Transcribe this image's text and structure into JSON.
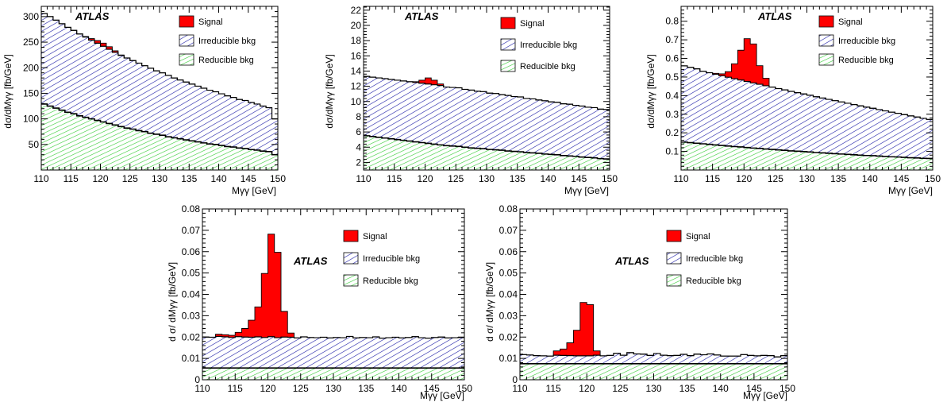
{
  "atlas_label": "ATLAS",
  "legend": {
    "signal": "Signal",
    "irreducible": "Irreducible bkg",
    "reducible": "Reducible bkg"
  },
  "colors": {
    "signal": "#ff0000",
    "irreducible": "#1a1aa6",
    "reducible": "#33cc33",
    "frame": "#000000"
  },
  "chart_data": [
    {
      "type": "area",
      "ylabel": "dσ/dMγγ [fb/GeV]",
      "xlabel": "Mγγ [GeV]",
      "xlim": [
        110,
        150
      ],
      "ylim": [
        0,
        320
      ],
      "x_ticks": [
        110,
        115,
        120,
        125,
        130,
        135,
        140,
        145,
        150
      ],
      "y_ticks": [
        50,
        100,
        150,
        200,
        250,
        300
      ],
      "bin_edges": [
        110,
        111,
        112,
        113,
        114,
        115,
        116,
        117,
        118,
        119,
        120,
        121,
        122,
        123,
        124,
        125,
        126,
        127,
        128,
        129,
        130,
        131,
        132,
        133,
        134,
        135,
        136,
        137,
        138,
        139,
        140,
        141,
        142,
        143,
        144,
        145,
        146,
        147,
        148,
        149,
        150
      ],
      "series": [
        {
          "name": "Signal",
          "values": [
            0,
            0,
            0,
            0,
            0,
            0,
            0,
            1,
            3,
            5,
            6,
            5,
            3,
            1,
            0,
            0,
            0,
            0,
            0,
            0,
            0,
            0,
            0,
            0,
            0,
            0,
            0,
            0,
            0,
            0,
            0,
            0,
            0,
            0,
            0,
            0,
            0,
            0,
            0,
            0
          ]
        },
        {
          "name": "Irreducible bkg",
          "values": [
            177,
            175,
            172,
            169,
            166,
            163,
            160,
            157,
            154,
            151,
            148,
            145,
            142,
            139,
            137,
            134,
            132,
            129,
            127,
            124,
            122,
            120,
            117,
            115,
            113,
            111,
            109,
            107,
            105,
            103,
            101,
            99,
            97,
            95,
            94,
            92,
            90,
            88,
            86,
            70
          ]
        },
        {
          "name": "Reducible bkg",
          "values": [
            129,
            125,
            121,
            117,
            113,
            110,
            106,
            103,
            100,
            97,
            94,
            91,
            88,
            85,
            82,
            80,
            77,
            75,
            72,
            70,
            68,
            65,
            63,
            61,
            59,
            57,
            55,
            53,
            51,
            50,
            48,
            46,
            45,
            43,
            42,
            40,
            39,
            37,
            36,
            30
          ]
        }
      ]
    },
    {
      "type": "area",
      "ylabel": "dσ/dMγγ [fb/GeV]",
      "xlabel": "Mγγ [GeV]",
      "xlim": [
        110,
        150
      ],
      "ylim": [
        1,
        22.5
      ],
      "x_ticks": [
        110,
        115,
        120,
        125,
        130,
        135,
        140,
        145,
        150
      ],
      "y_ticks": [
        2,
        4,
        6,
        8,
        10,
        12,
        14,
        16,
        18,
        20,
        22
      ],
      "bin_edges": [
        110,
        111,
        112,
        113,
        114,
        115,
        116,
        117,
        118,
        119,
        120,
        121,
        122,
        123,
        124,
        125,
        126,
        127,
        128,
        129,
        130,
        131,
        132,
        133,
        134,
        135,
        136,
        137,
        138,
        139,
        140,
        141,
        142,
        143,
        144,
        145,
        146,
        147,
        148,
        149,
        150
      ],
      "series": [
        {
          "name": "Signal",
          "values": [
            0,
            0,
            0,
            0,
            0,
            0,
            0,
            0,
            0.1,
            0.4,
            0.8,
            0.6,
            0.2,
            0,
            0,
            0,
            0,
            0,
            0,
            0,
            0,
            0,
            0,
            0,
            0,
            0,
            0,
            0,
            0,
            0,
            0,
            0,
            0,
            0,
            0,
            0,
            0,
            0,
            0,
            0
          ]
        },
        {
          "name": "Irreducible bkg",
          "values": [
            7.8,
            7.8,
            7.8,
            7.8,
            7.8,
            7.8,
            7.8,
            7.8,
            7.8,
            7.8,
            7.8,
            7.8,
            7.8,
            7.7,
            7.7,
            7.7,
            7.6,
            7.6,
            7.5,
            7.5,
            7.4,
            7.4,
            7.3,
            7.3,
            7.2,
            7.2,
            7.1,
            7.1,
            7.0,
            7.0,
            6.9,
            6.9,
            6.8,
            6.8,
            6.7,
            6.7,
            6.6,
            6.6,
            6.5,
            6.5
          ]
        },
        {
          "name": "Reducible bkg",
          "values": [
            5.5,
            5.4,
            5.3,
            5.2,
            5.1,
            5.0,
            4.9,
            4.8,
            4.7,
            4.6,
            4.5,
            4.4,
            4.3,
            4.2,
            4.15,
            4.1,
            4.0,
            3.9,
            3.85,
            3.8,
            3.7,
            3.65,
            3.6,
            3.5,
            3.45,
            3.4,
            3.3,
            3.25,
            3.2,
            3.1,
            3.05,
            3.0,
            2.9,
            2.85,
            2.8,
            2.7,
            2.65,
            2.6,
            2.5,
            2.45
          ]
        }
      ]
    },
    {
      "type": "area",
      "ylabel": "dσ/dMγγ [fb/GeV]",
      "xlabel": "Mγγ [GeV]",
      "xlim": [
        110,
        150
      ],
      "ylim": [
        0,
        0.88
      ],
      "x_ticks": [
        110,
        115,
        120,
        125,
        130,
        135,
        140,
        145,
        150
      ],
      "y_ticks": [
        0.1,
        0.2,
        0.3,
        0.4,
        0.5,
        0.6,
        0.7,
        0.8
      ],
      "bin_edges": [
        110,
        111,
        112,
        113,
        114,
        115,
        116,
        117,
        118,
        119,
        120,
        121,
        122,
        123,
        124,
        125,
        126,
        127,
        128,
        129,
        130,
        131,
        132,
        133,
        134,
        135,
        136,
        137,
        138,
        139,
        140,
        141,
        142,
        143,
        144,
        145,
        146,
        147,
        148,
        149,
        150
      ],
      "series": [
        {
          "name": "Signal",
          "values": [
            0,
            0,
            0,
            0,
            0,
            0.005,
            0.01,
            0.03,
            0.08,
            0.16,
            0.23,
            0.21,
            0.1,
            0.04,
            0,
            0,
            0,
            0,
            0,
            0,
            0,
            0,
            0,
            0,
            0,
            0,
            0,
            0,
            0,
            0,
            0,
            0,
            0,
            0,
            0,
            0,
            0,
            0,
            0,
            0
          ]
        },
        {
          "name": "Irreducible bkg",
          "values": [
            0.41,
            0.405,
            0.4,
            0.39,
            0.385,
            0.38,
            0.375,
            0.37,
            0.365,
            0.36,
            0.355,
            0.35,
            0.345,
            0.34,
            0.335,
            0.33,
            0.325,
            0.32,
            0.315,
            0.31,
            0.305,
            0.3,
            0.295,
            0.29,
            0.285,
            0.28,
            0.275,
            0.27,
            0.265,
            0.26,
            0.255,
            0.25,
            0.245,
            0.24,
            0.235,
            0.23,
            0.225,
            0.22,
            0.215,
            0.21
          ]
        },
        {
          "name": "Reducible bkg",
          "values": [
            0.15,
            0.147,
            0.144,
            0.141,
            0.138,
            0.135,
            0.132,
            0.129,
            0.126,
            0.124,
            0.121,
            0.118,
            0.116,
            0.113,
            0.111,
            0.108,
            0.106,
            0.103,
            0.101,
            0.099,
            0.097,
            0.094,
            0.092,
            0.09,
            0.088,
            0.086,
            0.084,
            0.082,
            0.08,
            0.078,
            0.077,
            0.075,
            0.073,
            0.071,
            0.07,
            0.068,
            0.066,
            0.065,
            0.063,
            0.062
          ]
        }
      ]
    },
    {
      "type": "area",
      "ylabel": "d σ/ dMγγ [fb/GeV]",
      "xlabel": "Mγγ [GeV]",
      "xlim": [
        110,
        150
      ],
      "ylim": [
        0,
        0.08
      ],
      "x_ticks": [
        110,
        115,
        120,
        125,
        130,
        135,
        140,
        145,
        150
      ],
      "y_ticks": [
        0,
        0.01,
        0.02,
        0.03,
        0.04,
        0.05,
        0.06,
        0.07,
        0.08
      ],
      "bin_edges": [
        110,
        111,
        112,
        113,
        114,
        115,
        116,
        117,
        118,
        119,
        120,
        121,
        122,
        123,
        124,
        125,
        126,
        127,
        128,
        129,
        130,
        131,
        132,
        133,
        134,
        135,
        136,
        137,
        138,
        139,
        140,
        141,
        142,
        143,
        144,
        145,
        146,
        147,
        148,
        149,
        150
      ],
      "series": [
        {
          "name": "Signal",
          "values": [
            0,
            0,
            0.001,
            0.001,
            0.001,
            0.002,
            0.004,
            0.008,
            0.014,
            0.03,
            0.048,
            0.04,
            0.012,
            0.002,
            0,
            0,
            0,
            0,
            0,
            0,
            0,
            0,
            0,
            0,
            0,
            0,
            0,
            0,
            0,
            0,
            0,
            0,
            0,
            0,
            0,
            0,
            0,
            0,
            0,
            0
          ]
        },
        {
          "name": "Irreducible bkg",
          "values": [
            0.0145,
            0.0144,
            0.0148,
            0.0146,
            0.0143,
            0.0147,
            0.0145,
            0.0144,
            0.0146,
            0.0143,
            0.0147,
            0.0142,
            0.0145,
            0.0144,
            0.0141,
            0.0146,
            0.0143,
            0.0142,
            0.0144,
            0.0141,
            0.0143,
            0.0142,
            0.0148,
            0.0141,
            0.0143,
            0.0142,
            0.0146,
            0.014,
            0.0142,
            0.0144,
            0.0141,
            0.0143,
            0.0147,
            0.0142,
            0.014,
            0.0143,
            0.0145,
            0.0141,
            0.0142,
            0.0143
          ]
        },
        {
          "name": "Reducible bkg",
          "values": [
            0.0055,
            0.0055,
            0.0055,
            0.0055,
            0.0055,
            0.0055,
            0.0055,
            0.0055,
            0.0055,
            0.0055,
            0.0055,
            0.0055,
            0.0055,
            0.0055,
            0.0055,
            0.0055,
            0.0055,
            0.0055,
            0.0055,
            0.0055,
            0.0055,
            0.0055,
            0.0055,
            0.0055,
            0.0055,
            0.0055,
            0.0055,
            0.0055,
            0.0055,
            0.0055,
            0.0055,
            0.0055,
            0.0055,
            0.0055,
            0.0055,
            0.0055,
            0.0055,
            0.0055,
            0.0055,
            0.0055
          ]
        }
      ]
    },
    {
      "type": "area",
      "ylabel": "d σ/ dMγγ [fb/GeV]",
      "xlabel": "Mγγ [GeV]",
      "xlim": [
        110,
        150
      ],
      "ylim": [
        0,
        0.08
      ],
      "x_ticks": [
        110,
        115,
        120,
        125,
        130,
        135,
        140,
        145,
        150
      ],
      "y_ticks": [
        0,
        0.01,
        0.02,
        0.03,
        0.04,
        0.05,
        0.06,
        0.07,
        0.08
      ],
      "bin_edges": [
        110,
        111,
        112,
        113,
        114,
        115,
        116,
        117,
        118,
        119,
        120,
        121,
        122,
        123,
        124,
        125,
        126,
        127,
        128,
        129,
        130,
        131,
        132,
        133,
        134,
        135,
        136,
        137,
        138,
        139,
        140,
        141,
        142,
        143,
        144,
        145,
        146,
        147,
        148,
        149,
        150
      ],
      "series": [
        {
          "name": "Signal",
          "values": [
            0,
            0,
            0,
            0,
            0,
            0.002,
            0.003,
            0.006,
            0.012,
            0.025,
            0.024,
            0.002,
            0,
            0,
            0,
            0,
            0,
            0,
            0,
            0,
            0,
            0,
            0,
            0,
            0,
            0,
            0,
            0,
            0,
            0,
            0,
            0,
            0,
            0,
            0,
            0,
            0,
            0,
            0,
            0
          ]
        },
        {
          "name": "Irreducible bkg",
          "values": [
            0.0043,
            0.0041,
            0.0038,
            0.0037,
            0.0036,
            0.004,
            0.0039,
            0.0038,
            0.0037,
            0.0037,
            0.0037,
            0.004,
            0.0037,
            0.0039,
            0.0049,
            0.004,
            0.0052,
            0.0046,
            0.0045,
            0.0039,
            0.0048,
            0.004,
            0.0038,
            0.0039,
            0.0044,
            0.0038,
            0.0045,
            0.0042,
            0.0046,
            0.0041,
            0.0036,
            0.0036,
            0.0036,
            0.0043,
            0.0039,
            0.0037,
            0.0039,
            0.0038,
            0.0032,
            0.0038
          ]
        },
        {
          "name": "Reducible bkg",
          "values": [
            0.0075,
            0.0075,
            0.0075,
            0.0075,
            0.0075,
            0.0075,
            0.0075,
            0.0075,
            0.0075,
            0.0075,
            0.0075,
            0.0075,
            0.0075,
            0.0075,
            0.0075,
            0.0075,
            0.0075,
            0.0075,
            0.0075,
            0.0075,
            0.0075,
            0.0075,
            0.0075,
            0.0075,
            0.0075,
            0.0075,
            0.0075,
            0.0075,
            0.0075,
            0.0075,
            0.0075,
            0.0075,
            0.0075,
            0.0075,
            0.0075,
            0.0075,
            0.0075,
            0.0075,
            0.0075,
            0.0075
          ]
        }
      ]
    }
  ]
}
